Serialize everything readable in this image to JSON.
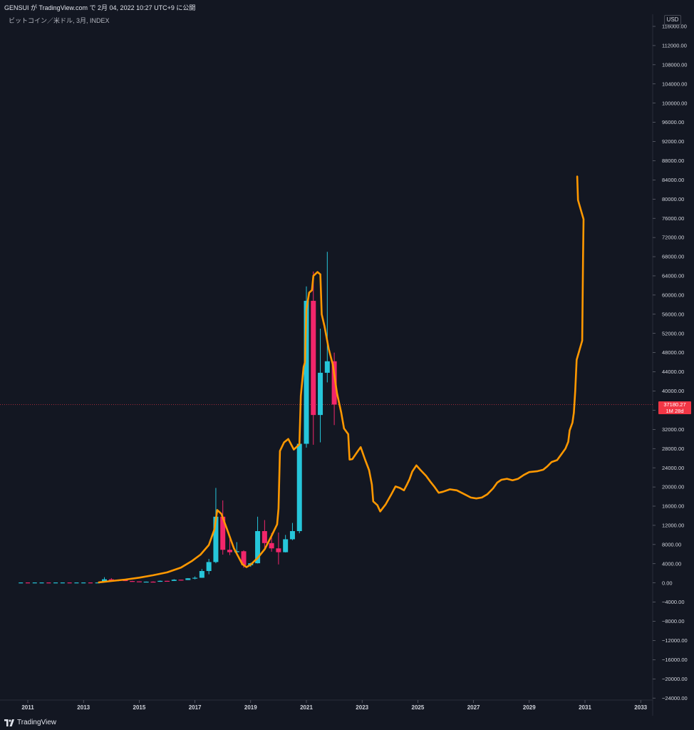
{
  "header": {
    "publish_info": "GENSUI が TradingView.com で 2月 04, 2022 10:27 UTC+9 に公開",
    "symbol_info": "ビットコイン／米ドル, 3月, INDEX",
    "currency": "USD"
  },
  "price_badge": {
    "price": "37180.27",
    "countdown": "1M 28d",
    "color": "#f23645"
  },
  "footer": {
    "brand": "TradingView"
  },
  "colors": {
    "background": "#131722",
    "up": "#26c6da",
    "down": "#f2266b",
    "projection": "#ff9800",
    "price_line": "#f23645"
  },
  "chart_data": {
    "type": "line",
    "title": "",
    "xlabel": "",
    "ylabel": "USD",
    "grid": false,
    "xlim": [
      2010.5,
      2033.5
    ],
    "ylim": [
      -24000,
      116000
    ],
    "current_price": 37180.27,
    "x_ticks": [
      "2011",
      "2013",
      "2015",
      "2017",
      "2019",
      "2021",
      "2023",
      "2025",
      "2027",
      "2029",
      "2031",
      "2033"
    ],
    "y_ticks": [
      "116000.00",
      "112000.00",
      "108000.00",
      "104000.00",
      "100000.00",
      "96000.00",
      "92000.00",
      "88000.00",
      "84000.00",
      "80000.00",
      "76000.00",
      "72000.00",
      "68000.00",
      "64000.00",
      "60000.00",
      "56000.00",
      "52000.00",
      "48000.00",
      "44000.00",
      "40000.00",
      "36000.00",
      "32000.00",
      "28000.00",
      "24000.00",
      "20000.00",
      "16000.00",
      "12000.00",
      "8000.00",
      "4000.00",
      "0.00",
      "−4000.00",
      "−8000.00",
      "−12000.00",
      "−16000.00",
      "−20000.00",
      "−24000.00"
    ],
    "candles": [
      {
        "t": 2013.75,
        "o": 120,
        "h": 1200,
        "l": 110,
        "c": 750
      },
      {
        "t": 2014.0,
        "o": 750,
        "h": 1000,
        "l": 400,
        "c": 450
      },
      {
        "t": 2014.25,
        "o": 450,
        "h": 680,
        "l": 350,
        "c": 630
      },
      {
        "t": 2014.5,
        "o": 630,
        "h": 650,
        "l": 380,
        "c": 390
      },
      {
        "t": 2014.75,
        "o": 390,
        "h": 450,
        "l": 300,
        "c": 320
      },
      {
        "t": 2015.0,
        "o": 320,
        "h": 330,
        "l": 170,
        "c": 250
      },
      {
        "t": 2015.25,
        "o": 250,
        "h": 280,
        "l": 220,
        "c": 260
      },
      {
        "t": 2015.5,
        "o": 260,
        "h": 320,
        "l": 210,
        "c": 240
      },
      {
        "t": 2015.75,
        "o": 240,
        "h": 500,
        "l": 230,
        "c": 430
      },
      {
        "t": 2016.0,
        "o": 430,
        "h": 440,
        "l": 360,
        "c": 420
      },
      {
        "t": 2016.25,
        "o": 420,
        "h": 780,
        "l": 410,
        "c": 670
      },
      {
        "t": 2016.5,
        "o": 670,
        "h": 680,
        "l": 480,
        "c": 610
      },
      {
        "t": 2016.75,
        "o": 610,
        "h": 1000,
        "l": 600,
        "c": 960
      },
      {
        "t": 2017.0,
        "o": 960,
        "h": 1350,
        "l": 750,
        "c": 1070
      },
      {
        "t": 2017.25,
        "o": 1070,
        "h": 2900,
        "l": 1050,
        "c": 2480
      },
      {
        "t": 2017.5,
        "o": 2480,
        "h": 5000,
        "l": 1800,
        "c": 4350
      },
      {
        "t": 2017.75,
        "o": 4350,
        "h": 19800,
        "l": 4100,
        "c": 13800
      },
      {
        "t": 2018.0,
        "o": 13800,
        "h": 17200,
        "l": 5900,
        "c": 6900
      },
      {
        "t": 2018.25,
        "o": 6900,
        "h": 9950,
        "l": 5800,
        "c": 6400
      },
      {
        "t": 2018.5,
        "o": 6400,
        "h": 8500,
        "l": 5850,
        "c": 6600
      },
      {
        "t": 2018.75,
        "o": 6600,
        "h": 6800,
        "l": 3150,
        "c": 3700
      },
      {
        "t": 2019.0,
        "o": 3700,
        "h": 4200,
        "l": 3350,
        "c": 4100
      },
      {
        "t": 2019.25,
        "o": 4100,
        "h": 13800,
        "l": 4050,
        "c": 10800
      },
      {
        "t": 2019.5,
        "o": 10800,
        "h": 13100,
        "l": 7300,
        "c": 8300
      },
      {
        "t": 2019.75,
        "o": 8300,
        "h": 10400,
        "l": 6500,
        "c": 7200
      },
      {
        "t": 2020.0,
        "o": 7200,
        "h": 10500,
        "l": 3850,
        "c": 6400
      },
      {
        "t": 2020.25,
        "o": 6400,
        "h": 10000,
        "l": 6350,
        "c": 9100
      },
      {
        "t": 2020.5,
        "o": 9100,
        "h": 12500,
        "l": 8900,
        "c": 10800
      },
      {
        "t": 2020.75,
        "o": 10800,
        "h": 29300,
        "l": 10350,
        "c": 29000
      },
      {
        "t": 2021.0,
        "o": 29000,
        "h": 61800,
        "l": 28200,
        "c": 58800
      },
      {
        "t": 2021.25,
        "o": 58800,
        "h": 64900,
        "l": 28800,
        "c": 35000
      },
      {
        "t": 2021.5,
        "o": 35000,
        "h": 53000,
        "l": 29300,
        "c": 43800
      },
      {
        "t": 2021.75,
        "o": 43800,
        "h": 69000,
        "l": 41800,
        "c": 46200
      },
      {
        "t": 2022.0,
        "o": 46200,
        "h": 48000,
        "l": 32900,
        "c": 37180
      }
    ],
    "series": [
      {
        "name": "",
        "color": "#ff9800",
        "points": [
          [
            2013.55,
            120
          ],
          [
            2014.0,
            400
          ],
          [
            2014.5,
            700
          ],
          [
            2015.0,
            1100
          ],
          [
            2015.5,
            1600
          ],
          [
            2016.0,
            2200
          ],
          [
            2016.5,
            3200
          ],
          [
            2016.9,
            4600
          ],
          [
            2017.2,
            5900
          ],
          [
            2017.5,
            7900
          ],
          [
            2017.7,
            11200
          ],
          [
            2017.8,
            15200
          ],
          [
            2017.95,
            14400
          ],
          [
            2018.15,
            11200
          ],
          [
            2018.4,
            7200
          ],
          [
            2018.7,
            3900
          ],
          [
            2018.85,
            3300
          ],
          [
            2019.0,
            3800
          ],
          [
            2019.25,
            5200
          ],
          [
            2019.5,
            7000
          ],
          [
            2019.75,
            9800
          ],
          [
            2019.95,
            12200
          ],
          [
            2020.0,
            15500
          ],
          [
            2020.05,
            27500
          ],
          [
            2020.2,
            29300
          ],
          [
            2020.35,
            30000
          ],
          [
            2020.55,
            27800
          ],
          [
            2020.75,
            28900
          ],
          [
            2020.8,
            39000
          ],
          [
            2020.9,
            45000
          ],
          [
            2020.95,
            46000
          ],
          [
            2021.0,
            57000
          ],
          [
            2021.1,
            60500
          ],
          [
            2021.2,
            61000
          ],
          [
            2021.25,
            64000
          ],
          [
            2021.4,
            64800
          ],
          [
            2021.5,
            64300
          ],
          [
            2021.55,
            56000
          ],
          [
            2021.65,
            53500
          ],
          [
            2021.8,
            48800
          ],
          [
            2021.95,
            45500
          ],
          [
            2022.1,
            39500
          ],
          [
            2022.25,
            35500
          ],
          [
            2022.35,
            32200
          ],
          [
            2022.5,
            31000
          ],
          [
            2022.55,
            25700
          ],
          [
            2022.65,
            25800
          ],
          [
            2022.85,
            27500
          ],
          [
            2022.95,
            28300
          ],
          [
            2023.1,
            25800
          ],
          [
            2023.25,
            23500
          ],
          [
            2023.35,
            20500
          ],
          [
            2023.4,
            17000
          ],
          [
            2023.55,
            16200
          ],
          [
            2023.65,
            14900
          ],
          [
            2023.85,
            16400
          ],
          [
            2024.05,
            18500
          ],
          [
            2024.2,
            20100
          ],
          [
            2024.35,
            19800
          ],
          [
            2024.5,
            19300
          ],
          [
            2024.6,
            20400
          ],
          [
            2024.7,
            21600
          ],
          [
            2024.8,
            23200
          ],
          [
            2024.95,
            24500
          ],
          [
            2025.1,
            23500
          ],
          [
            2025.3,
            22300
          ],
          [
            2025.45,
            21100
          ],
          [
            2025.6,
            20000
          ],
          [
            2025.75,
            18800
          ],
          [
            2025.9,
            19000
          ],
          [
            2026.15,
            19500
          ],
          [
            2026.4,
            19300
          ],
          [
            2026.7,
            18400
          ],
          [
            2026.9,
            17800
          ],
          [
            2027.1,
            17600
          ],
          [
            2027.3,
            17800
          ],
          [
            2027.5,
            18500
          ],
          [
            2027.7,
            19700
          ],
          [
            2027.85,
            20900
          ],
          [
            2028.0,
            21500
          ],
          [
            2028.2,
            21700
          ],
          [
            2028.4,
            21400
          ],
          [
            2028.6,
            21700
          ],
          [
            2028.8,
            22500
          ],
          [
            2029.0,
            23100
          ],
          [
            2029.3,
            23300
          ],
          [
            2029.5,
            23600
          ],
          [
            2029.65,
            24300
          ],
          [
            2029.8,
            25200
          ],
          [
            2030.0,
            25600
          ],
          [
            2030.15,
            26800
          ],
          [
            2030.3,
            28000
          ],
          [
            2030.4,
            29400
          ],
          [
            2030.45,
            31800
          ],
          [
            2030.55,
            33400
          ],
          [
            2030.6,
            35500
          ],
          [
            2030.65,
            40000
          ],
          [
            2030.7,
            46500
          ],
          [
            2030.8,
            48500
          ],
          [
            2030.9,
            50500
          ],
          [
            2030.93,
            68000
          ],
          [
            2030.95,
            75800
          ],
          [
            2030.85,
            77800
          ],
          [
            2030.75,
            79800
          ],
          [
            2030.72,
            84700
          ]
        ]
      }
    ]
  }
}
